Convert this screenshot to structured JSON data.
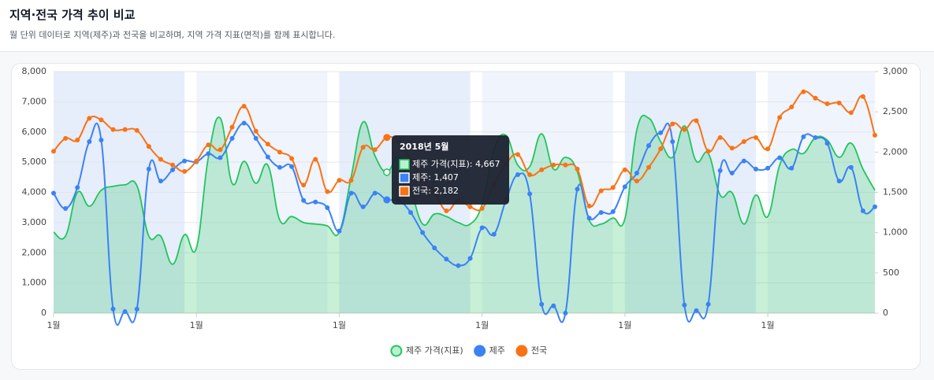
{
  "chart_data": {
    "type": "line",
    "title": "지역·전국 가격 추이 비교",
    "subtitle": "월 단위 데이터로 지역(제주)과 전국을 비교하며, 지역 가격 지표(면적)를 함께 표시합니다.",
    "categories": [
      "1월",
      null,
      null,
      null,
      null,
      null,
      null,
      null,
      null,
      null,
      null,
      null,
      "1월",
      null,
      null,
      null,
      null,
      null,
      null,
      null,
      null,
      null,
      null,
      null,
      "1월",
      null,
      null,
      null,
      null,
      null,
      null,
      null,
      null,
      null,
      null,
      null,
      "1월",
      null,
      null,
      null,
      null,
      null,
      null,
      null,
      null,
      null,
      null,
      null,
      "1월",
      null,
      null,
      null,
      null,
      null,
      null,
      null,
      null,
      null,
      null,
      null,
      "1월",
      null,
      null,
      null,
      null,
      null,
      null,
      null,
      null,
      null
    ],
    "series": [
      {
        "name": "제주 가격(지표)",
        "color": "#22c55e",
        "area": true,
        "axis": "y",
        "values": [
          2680,
          2550,
          4000,
          3540,
          4070,
          4200,
          4250,
          4220,
          2550,
          2550,
          1620,
          2600,
          2160,
          5160,
          6460,
          4300,
          5030,
          4300,
          4900,
          3080,
          3200,
          3000,
          2950,
          2890,
          2680,
          4510,
          6330,
          5210,
          4667,
          5160,
          4120,
          2950,
          3280,
          3200,
          3000,
          2950,
          3600,
          5420,
          5890,
          4900,
          4850,
          5940,
          4770,
          5160,
          4690,
          3080,
          2950,
          3150,
          3130,
          6070,
          6460,
          5680,
          5160,
          6200,
          5030,
          5290,
          3910,
          3990,
          2950,
          3910,
          3200,
          4900,
          5420,
          5290,
          5810,
          5730,
          5160,
          5630,
          4770,
          4070
        ]
      },
      {
        "name": "제주",
        "color": "#3b82f6",
        "axis": "y2",
        "values": [
          1490,
          1300,
          1560,
          2130,
          2150,
          50,
          20,
          50,
          1790,
          1640,
          1780,
          1890,
          1880,
          1980,
          1930,
          2170,
          2360,
          2170,
          1940,
          1810,
          1820,
          1400,
          1380,
          1310,
          1020,
          1490,
          1320,
          1490,
          1407,
          1400,
          1250,
          1000,
          810,
          670,
          590,
          680,
          1060,
          980,
          1400,
          1720,
          1480,
          110,
          90,
          0,
          1540,
          1180,
          1250,
          1260,
          1570,
          1740,
          2080,
          2240,
          2130,
          100,
          30,
          110,
          1770,
          1740,
          1890,
          1790,
          1800,
          1930,
          1800,
          2190,
          2180,
          2110,
          1640,
          1810,
          1270,
          1320
        ]
      },
      {
        "name": "전국",
        "color": "#f97316",
        "axis": "y2",
        "values": [
          2010,
          2170,
          2150,
          2420,
          2400,
          2280,
          2280,
          2270,
          2070,
          1910,
          1840,
          1760,
          1890,
          2090,
          2030,
          2310,
          2570,
          2260,
          2100,
          2000,
          1920,
          1590,
          1910,
          1510,
          1650,
          1650,
          2060,
          2030,
          2182,
          2130,
          1900,
          1650,
          1500,
          1270,
          1400,
          1320,
          1300,
          1600,
          1850,
          1970,
          1720,
          1780,
          1840,
          1840,
          1790,
          1330,
          1520,
          1560,
          1780,
          1640,
          1810,
          2040,
          2350,
          2280,
          2390,
          2010,
          2180,
          2050,
          2130,
          2180,
          2040,
          2430,
          2560,
          2750,
          2670,
          2600,
          2610,
          2490,
          2690,
          2210
        ]
      }
    ],
    "ylim": [
      0,
      8000
    ],
    "yticks": [
      0,
      {
        "value": 1000,
        "label": "1,000"
      },
      {
        "value": 2000,
        "label": "2,000"
      },
      {
        "value": 3000,
        "label": "3,000"
      },
      {
        "value": 4000,
        "label": "4,000"
      },
      {
        "value": 5000,
        "label": "5,000"
      },
      {
        "value": 6000,
        "label": "6,000"
      },
      {
        "value": 7000,
        "label": "7,000"
      },
      {
        "value": 8000,
        "label": "8,000"
      }
    ],
    "y2lim": [
      0,
      3000
    ],
    "y2ticks": [
      0,
      500,
      {
        "value": 1000,
        "label": "1,000"
      },
      {
        "value": 1500,
        "label": "1,500"
      },
      {
        "value": 2000,
        "label": "2,000"
      },
      {
        "value": 2500,
        "label": "2,500"
      },
      {
        "value": 3000,
        "label": "3,000"
      }
    ],
    "grid": true,
    "legend": "bottom",
    "tooltip": {
      "title": "2018년 5월",
      "lines": [
        "제주 가격(지표): 4,667",
        "제주: 1,407",
        "전국: 2,182"
      ]
    }
  }
}
